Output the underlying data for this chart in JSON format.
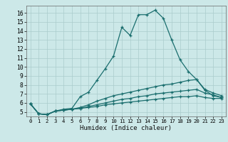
{
  "xlabel": "Humidex (Indice chaleur)",
  "bg_color": "#cce8e8",
  "grid_color": "#aacccc",
  "line_color": "#1a6e6e",
  "xlim": [
    -0.5,
    23.5
  ],
  "ylim": [
    4.5,
    16.8
  ],
  "lines": [
    {
      "x": [
        0,
        1,
        2,
        3,
        4,
        5,
        6,
        7,
        8,
        9,
        10,
        11,
        12,
        13,
        14,
        15,
        16,
        17,
        18,
        19,
        20,
        21,
        22,
        23
      ],
      "y": [
        5.9,
        4.8,
        4.7,
        5.1,
        5.3,
        5.4,
        6.7,
        7.2,
        8.5,
        9.8,
        11.2,
        14.4,
        13.5,
        15.8,
        15.8,
        16.3,
        15.4,
        13.0,
        10.8,
        9.5,
        8.6,
        7.4,
        6.8,
        6.6
      ]
    },
    {
      "x": [
        0,
        1,
        2,
        3,
        4,
        5,
        6,
        7,
        8,
        9,
        10,
        11,
        12,
        13,
        14,
        15,
        16,
        17,
        18,
        19,
        20,
        21,
        22,
        23
      ],
      "y": [
        5.9,
        4.8,
        4.7,
        5.1,
        5.2,
        5.3,
        5.5,
        5.8,
        6.2,
        6.5,
        6.8,
        7.0,
        7.2,
        7.4,
        7.6,
        7.8,
        8.0,
        8.1,
        8.3,
        8.5,
        8.6,
        7.5,
        7.1,
        6.8
      ]
    },
    {
      "x": [
        0,
        1,
        2,
        3,
        4,
        5,
        6,
        7,
        8,
        9,
        10,
        11,
        12,
        13,
        14,
        15,
        16,
        17,
        18,
        19,
        20,
        21,
        22,
        23
      ],
      "y": [
        5.9,
        4.8,
        4.7,
        5.1,
        5.2,
        5.3,
        5.4,
        5.6,
        5.8,
        6.0,
        6.2,
        6.4,
        6.5,
        6.7,
        6.8,
        7.0,
        7.1,
        7.2,
        7.3,
        7.4,
        7.5,
        7.1,
        6.9,
        6.6
      ]
    },
    {
      "x": [
        0,
        1,
        2,
        3,
        4,
        5,
        6,
        7,
        8,
        9,
        10,
        11,
        12,
        13,
        14,
        15,
        16,
        17,
        18,
        19,
        20,
        21,
        22,
        23
      ],
      "y": [
        5.9,
        4.8,
        4.7,
        5.1,
        5.2,
        5.3,
        5.4,
        5.5,
        5.6,
        5.8,
        5.9,
        6.0,
        6.1,
        6.2,
        6.3,
        6.4,
        6.5,
        6.6,
        6.7,
        6.7,
        6.8,
        6.6,
        6.5,
        6.5
      ]
    }
  ],
  "xticks": [
    0,
    1,
    2,
    3,
    4,
    5,
    6,
    7,
    8,
    9,
    10,
    11,
    12,
    13,
    14,
    15,
    16,
    17,
    18,
    19,
    20,
    21,
    22,
    23
  ],
  "yticks": [
    5,
    6,
    7,
    8,
    9,
    10,
    11,
    12,
    13,
    14,
    15,
    16
  ]
}
